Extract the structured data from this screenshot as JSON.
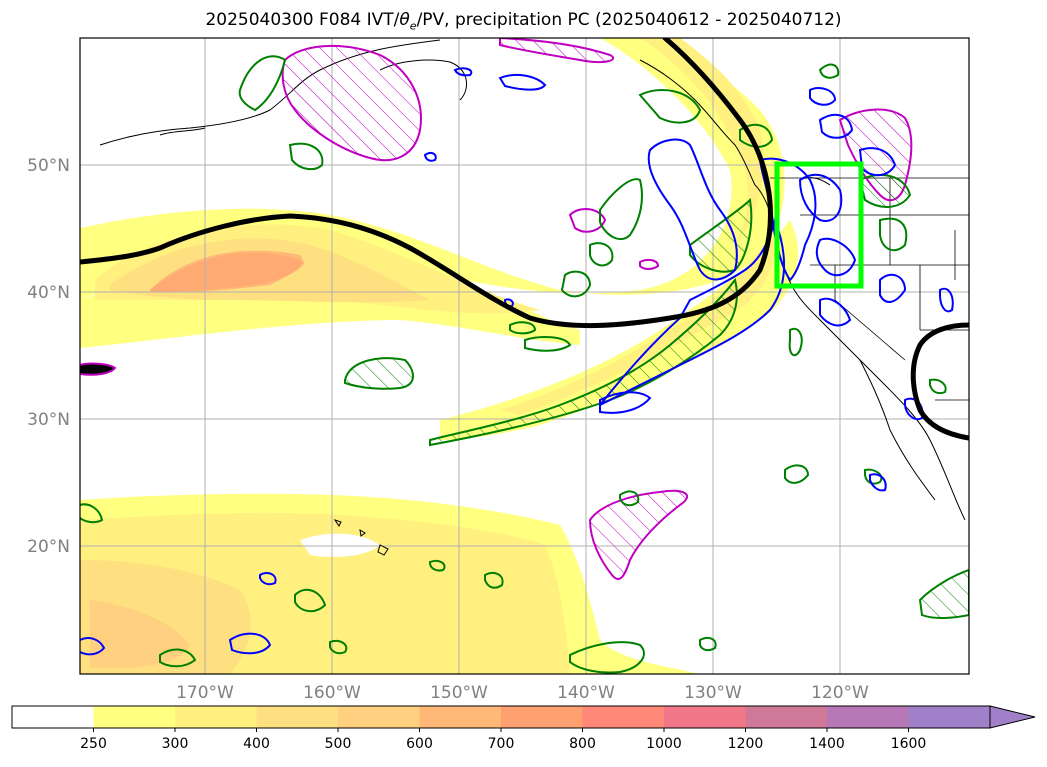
{
  "title_prefix": "2025040300 F084 IVT/",
  "title_theta": "θ",
  "title_theta_sub": "e",
  "title_suffix": "/PV, precipitation PC (2025040612 - 2025040712)",
  "lat_labels": [
    "50°N",
    "40°N",
    "30°N",
    "20°N"
  ],
  "lon_labels": [
    "170°W",
    "160°W",
    "150°W",
    "140°W",
    "130°W",
    "120°W"
  ],
  "colorbar": {
    "levels": [
      "250",
      "300",
      "400",
      "500",
      "600",
      "700",
      "800",
      "1000",
      "1200",
      "1400",
      "1600"
    ],
    "colors": [
      "#ffffff",
      "#ffff80",
      "#fff080",
      "#ffe080",
      "#ffd080",
      "#ffb878",
      "#ffa070",
      "#ff8878",
      "#f07888",
      "#d07898",
      "#b878b8",
      "#a080c8"
    ]
  },
  "legend_colors": {
    "ivt_fill": "#fff080",
    "pv_contour": "#000000",
    "theta_contour": "#008000",
    "precip_contour": "#0000ff",
    "anomaly_contour": "#c000c0",
    "target_box": "#00ff00"
  }
}
